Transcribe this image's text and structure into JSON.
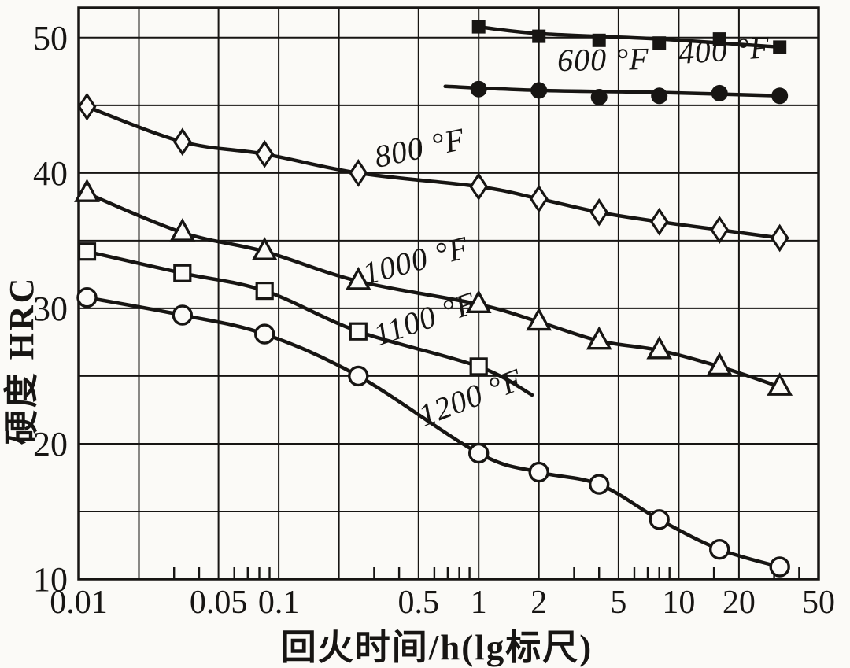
{
  "figure": {
    "paper_color": "#fbfaf7",
    "ink_color": "#171513"
  },
  "chart_data": {
    "type": "line",
    "title": "",
    "xlabel": "回火时间/h(lg标尺)",
    "ylabel": "硬度 HRC",
    "x_scale": "log",
    "xlim": [
      0.01,
      50
    ],
    "ylim": [
      10,
      52.2
    ],
    "grid": true,
    "legend_position": "inline-curve-labels",
    "x_major_gridlines": [
      0.01,
      0.02,
      0.05,
      0.1,
      0.2,
      0.5,
      1,
      2,
      5,
      10,
      20,
      50
    ],
    "x_minor_ticks": [
      0.03,
      0.04,
      0.06,
      0.07,
      0.08,
      0.09,
      0.3,
      0.4,
      0.6,
      0.7,
      0.8,
      0.9,
      3,
      4,
      6,
      7,
      8,
      9,
      15,
      30,
      40
    ],
    "x_ticks": [
      {
        "value": 0.01,
        "label": "0.01"
      },
      {
        "value": 0.05,
        "label": "0.05"
      },
      {
        "value": 0.1,
        "label": "0.1"
      },
      {
        "value": 0.5,
        "label": "0.5"
      },
      {
        "value": 1,
        "label": "1"
      },
      {
        "value": 2,
        "label": "2"
      },
      {
        "value": 5,
        "label": "5"
      },
      {
        "value": 10,
        "label": "10"
      },
      {
        "value": 20,
        "label": "20"
      },
      {
        "value": 50,
        "label": "50"
      }
    ],
    "y_gridlines": [
      15,
      20,
      25,
      30,
      35,
      40,
      45,
      50
    ],
    "y_ticks": [
      {
        "value": 10,
        "label": "10"
      },
      {
        "value": 20,
        "label": "20"
      },
      {
        "value": 30,
        "label": "30"
      },
      {
        "value": 40,
        "label": "40"
      },
      {
        "value": 50,
        "label": "50"
      }
    ],
    "series": [
      {
        "name": "400 °F",
        "temperature_F": 400,
        "marker": "filled-square",
        "points": [
          [
            1,
            50.8
          ],
          [
            2,
            50.1
          ],
          [
            4,
            49.8
          ],
          [
            8,
            49.6
          ],
          [
            16,
            49.9
          ],
          [
            32,
            49.3
          ]
        ],
        "line": [
          [
            1,
            50.8
          ],
          [
            2,
            50.3
          ],
          [
            8,
            49.9
          ],
          [
            32,
            49.3
          ]
        ],
        "label": {
          "text": "400 °F",
          "t": 17,
          "hrc": 48.3,
          "rotate": -4
        }
      },
      {
        "name": "600 °F",
        "temperature_F": 600,
        "marker": "filled-circle",
        "points": [
          [
            1,
            46.2
          ],
          [
            2,
            46.1
          ],
          [
            4,
            45.6
          ],
          [
            8,
            45.7
          ],
          [
            16,
            45.9
          ],
          [
            32,
            45.7
          ]
        ],
        "line": [
          [
            0.68,
            46.4
          ],
          [
            2,
            46.1
          ],
          [
            8,
            45.95
          ],
          [
            32,
            45.7
          ]
        ],
        "label": {
          "text": "600 °F",
          "t": 4.2,
          "hrc": 47.6,
          "rotate": -1
        }
      },
      {
        "name": "800 °F",
        "temperature_F": 800,
        "marker": "open-diamond",
        "points": [
          [
            0.011,
            44.9
          ],
          [
            0.033,
            42.3
          ],
          [
            0.085,
            41.4
          ],
          [
            0.25,
            40.0
          ],
          [
            1,
            39.0
          ],
          [
            2,
            38.1
          ],
          [
            4,
            37.1
          ],
          [
            8,
            36.4
          ],
          [
            16,
            35.8
          ],
          [
            32,
            35.2
          ]
        ],
        "label": {
          "text": "800 °F",
          "t": 0.52,
          "hrc": 41.1,
          "rotate": -12
        }
      },
      {
        "name": "1000 °F",
        "temperature_F": 1000,
        "marker": "open-triangle",
        "points": [
          [
            0.011,
            38.5
          ],
          [
            0.033,
            35.6
          ],
          [
            0.085,
            34.2
          ],
          [
            0.25,
            32.0
          ],
          [
            1,
            30.3
          ],
          [
            2,
            29.0
          ],
          [
            4,
            27.6
          ],
          [
            8,
            26.9
          ],
          [
            16,
            25.7
          ],
          [
            32,
            24.2
          ]
        ],
        "label": {
          "text": "1000 °F",
          "t": 0.5,
          "hrc": 32.8,
          "rotate": -15
        }
      },
      {
        "name": "1100 °F",
        "temperature_F": 1100,
        "marker": "open-square",
        "points": [
          [
            0.011,
            34.2
          ],
          [
            0.033,
            32.6
          ],
          [
            0.085,
            31.3
          ],
          [
            0.25,
            28.3
          ],
          [
            1,
            25.7
          ]
        ],
        "line_tail": [
          [
            1.85,
            23.6
          ]
        ],
        "label": {
          "text": "1100 °F",
          "t": 0.56,
          "hrc": 28.5,
          "rotate": -19
        }
      },
      {
        "name": "1200 °F",
        "temperature_F": 1200,
        "marker": "open-circle",
        "points": [
          [
            0.011,
            30.8
          ],
          [
            0.033,
            29.5
          ],
          [
            0.085,
            28.1
          ],
          [
            0.25,
            25.0
          ],
          [
            1,
            19.3
          ],
          [
            2,
            17.9
          ],
          [
            4,
            17.0
          ],
          [
            8,
            14.4
          ],
          [
            16,
            12.2
          ],
          [
            32,
            10.9
          ]
        ],
        "label": {
          "text": "1200 °F",
          "t": 0.95,
          "hrc": 22.7,
          "rotate": -21
        }
      }
    ]
  }
}
